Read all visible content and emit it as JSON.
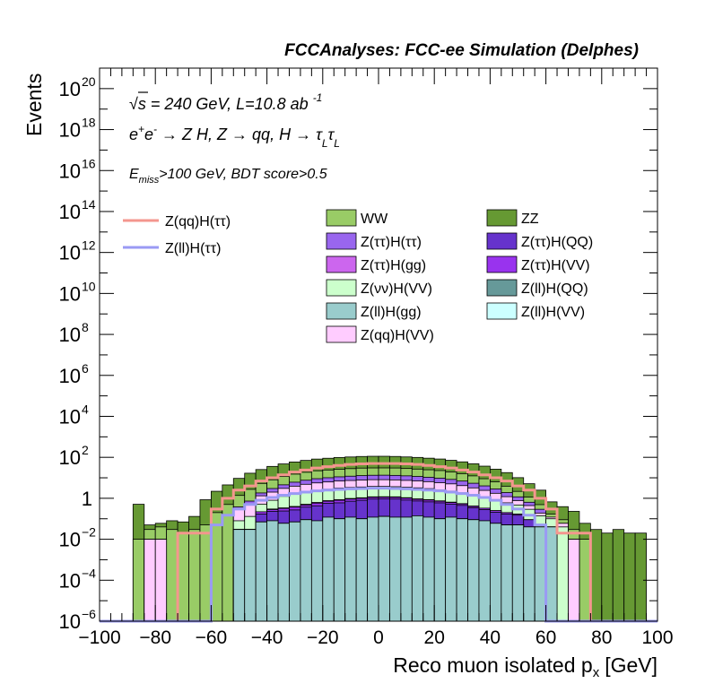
{
  "chart_data": {
    "type": "area",
    "title": "FCCAnalyses: FCC-ee Simulation (Delphes)",
    "xlabel": "Reco muon isolated p",
    "xlabel_sub": "x",
    "xlabel_unit": "[GeV]",
    "ylabel": "Events",
    "log_y": true,
    "xlim": [
      -100,
      100
    ],
    "ylim": [
      1e-06,
      1e+21
    ],
    "x_ticks": [
      "−100",
      "−80",
      "−60",
      "−40",
      "−20",
      "0",
      "20",
      "40",
      "60",
      "80",
      "100"
    ],
    "y_ticks": [
      {
        "base": "10",
        "exp": "−6"
      },
      {
        "base": "10",
        "exp": "−4"
      },
      {
        "base": "10",
        "exp": "−2"
      },
      {
        "base": "1",
        "exp": ""
      },
      {
        "base": "10",
        "exp": "2"
      },
      {
        "base": "10",
        "exp": "4"
      },
      {
        "base": "10",
        "exp": "6"
      },
      {
        "base": "10",
        "exp": "8"
      },
      {
        "base": "10",
        "exp": "10"
      },
      {
        "base": "10",
        "exp": "12"
      },
      {
        "base": "10",
        "exp": "14"
      },
      {
        "base": "10",
        "exp": "16"
      },
      {
        "base": "10",
        "exp": "18"
      },
      {
        "base": "10",
        "exp": "20"
      }
    ],
    "annotations": {
      "energy": "√s = 240 GeV, L=10.8 ab",
      "energy_sup": "-1",
      "process": "e⁺e⁻ → Z H, Z → qq, H → τ_L τ_L",
      "process_parts": [
        "e",
        "+",
        "e",
        "-",
        " → Z H, Z  → qq, H  → τ",
        "L",
        "τ",
        "L"
      ],
      "cut": "E_miss>100 GeV, BDT score>0.5",
      "cut_parts": [
        "E",
        "miss",
        ">100 GeV, BDT score>0.5"
      ]
    },
    "legend": {
      "signals": [
        {
          "name": "Z(qq)H(ττ)",
          "color": "#f4968e"
        },
        {
          "name": "Z(ll)H(ττ)",
          "color": "#9a9af4"
        }
      ],
      "backgrounds": [
        {
          "name": "WW",
          "color": "#99cc66"
        },
        {
          "name": "ZZ",
          "color": "#669933"
        },
        {
          "name": "Z(ττ)H(ττ)",
          "color": "#9966ee"
        },
        {
          "name": "Z(ττ)H(QQ)",
          "color": "#6633cc"
        },
        {
          "name": "Z(ττ)H(gg)",
          "color": "#cc66ee"
        },
        {
          "name": "Z(ττ)H(VV)",
          "color": "#9933ee"
        },
        {
          "name": "Z(νν)H(VV)",
          "color": "#ccffcc"
        },
        {
          "name": "Z(ll)H(QQ)",
          "color": "#669999"
        },
        {
          "name": "Z(ll)H(gg)",
          "color": "#99cccc"
        },
        {
          "name": "Z(ll)H(VV)",
          "color": "#ccffff"
        },
        {
          "name": "Z(qq)H(VV)",
          "color": "#ffccff"
        }
      ]
    },
    "bin_width": 4,
    "stack": [
      {
        "name": "Z(ll)H(gg)",
        "color": "#99cccc",
        "values": [
          0,
          0,
          0,
          0,
          0,
          0,
          0,
          0,
          0,
          0,
          0,
          0,
          0.03,
          0.03,
          0.07,
          0.08,
          0.06,
          0.07,
          0.09,
          0.08,
          0.12,
          0.1,
          0.12,
          0.1,
          0.12,
          0.13,
          0.12,
          0.12,
          0.14,
          0.12,
          0.1,
          0.12,
          0.1,
          0.09,
          0.08,
          0.06,
          0.05,
          0.05,
          0.04,
          0.04,
          0.04,
          0,
          0,
          0,
          0,
          0,
          0,
          0,
          0,
          0
        ]
      },
      {
        "name": "Z(ll)H(QQ)",
        "color": "#669999",
        "values": [
          0,
          0,
          0,
          0,
          0,
          0,
          0,
          0,
          0,
          0,
          0,
          0,
          0,
          0,
          0,
          0,
          0,
          0,
          0,
          0,
          0,
          0,
          0,
          0,
          0,
          0,
          0,
          0,
          0,
          0,
          0,
          0,
          0,
          0,
          0,
          0,
          0,
          0,
          0,
          0,
          0,
          0,
          0,
          0,
          0,
          0,
          0,
          0,
          0,
          0
        ]
      },
      {
        "name": "Z(ll)H(VV)",
        "color": "#ccffff",
        "values": [
          0,
          0,
          0,
          0,
          0,
          0,
          0,
          0,
          0,
          0,
          0,
          0,
          0,
          0,
          0,
          0,
          0,
          0,
          0,
          0,
          0,
          0,
          0,
          0,
          0,
          0,
          0,
          0,
          0,
          0,
          0,
          0,
          0,
          0,
          0,
          0,
          0,
          0,
          0,
          0,
          0,
          0,
          0,
          0,
          0,
          0,
          0,
          0,
          0,
          0
        ]
      },
      {
        "name": "Z(ττ)H(QQ)",
        "color": "#6633cc",
        "values": [
          0,
          0,
          0,
          0,
          0,
          0,
          0,
          0,
          0,
          0,
          0,
          0,
          0,
          0,
          0.1,
          0.15,
          0.18,
          0.2,
          0.28,
          0.35,
          0.45,
          0.5,
          0.6,
          0.7,
          0.8,
          0.8,
          0.8,
          0.7,
          0.6,
          0.55,
          0.5,
          0.4,
          0.35,
          0.25,
          0.2,
          0.15,
          0.12,
          0.1,
          0.05,
          0,
          0,
          0,
          0,
          0,
          0,
          0,
          0,
          0,
          0,
          0
        ]
      },
      {
        "name": "Z(ττ)H(VV)",
        "color": "#9933ee",
        "values": [
          0,
          0,
          0,
          0,
          0,
          0,
          0,
          0,
          0,
          0,
          0,
          0,
          0,
          0,
          0.05,
          0.05,
          0.08,
          0.1,
          0.1,
          0.15,
          0.15,
          0.2,
          0.2,
          0.2,
          0.2,
          0.2,
          0.2,
          0.2,
          0.15,
          0.15,
          0.12,
          0.1,
          0.08,
          0.06,
          0.05,
          0.04,
          0.03,
          0.02,
          0,
          0,
          0,
          0,
          0,
          0,
          0,
          0,
          0,
          0,
          0,
          0
        ]
      },
      {
        "name": "Z(ττ)H(gg)",
        "color": "#cc66ee",
        "values": [
          0,
          0,
          0,
          0,
          0,
          0,
          0,
          0,
          0,
          0,
          0,
          0,
          0,
          0,
          0,
          0.02,
          0.02,
          0.03,
          0.04,
          0.05,
          0.05,
          0.06,
          0.06,
          0.06,
          0.06,
          0.06,
          0.06,
          0.05,
          0.05,
          0.04,
          0.03,
          0.03,
          0.02,
          0.02,
          0,
          0,
          0,
          0,
          0,
          0,
          0,
          0,
          0,
          0,
          0,
          0,
          0,
          0,
          0,
          0
        ]
      },
      {
        "name": "Z(νν)H(VV)",
        "color": "#ccffcc",
        "values": [
          0,
          0,
          0,
          0,
          0,
          0,
          0,
          0,
          0,
          0,
          0,
          0,
          0.05,
          0.1,
          0.3,
          0.5,
          0.9,
          1.2,
          1.5,
          1.8,
          2.0,
          2.3,
          2.4,
          2.5,
          2.6,
          2.6,
          2.5,
          2.4,
          2.3,
          2.1,
          1.8,
          1.6,
          1.3,
          1.0,
          0.8,
          0.6,
          0.4,
          0.3,
          0.2,
          0.1,
          0.06,
          0.04,
          0,
          0,
          0,
          0,
          0,
          0,
          0,
          0
        ]
      },
      {
        "name": "Z(qq)H(VV)",
        "color": "#ffccff",
        "values": [
          0,
          0,
          0,
          0,
          0.01,
          0.01,
          0,
          0,
          0,
          0,
          0,
          0,
          0.2,
          0.4,
          0.8,
          1.2,
          1.8,
          2.3,
          2.8,
          3.2,
          3.5,
          3.8,
          4.0,
          4.2,
          4.3,
          4.3,
          4.2,
          4.0,
          3.8,
          3.5,
          3.2,
          2.8,
          2.3,
          1.8,
          1.3,
          0.9,
          0.6,
          0.3,
          0.15,
          0.05,
          0.02,
          0.02,
          0.01,
          0,
          0,
          0,
          0,
          0,
          0,
          0
        ]
      },
      {
        "name": "Z(ττ)H(ττ)",
        "color": "#9966ee",
        "values": [
          0,
          0,
          0,
          0,
          0,
          0,
          0,
          0,
          0,
          0,
          0,
          0,
          0.1,
          0.2,
          0.5,
          1.0,
          1.5,
          2.2,
          2.8,
          3.4,
          3.8,
          4.2,
          4.6,
          5.0,
          5.2,
          5.3,
          5.2,
          5.0,
          4.6,
          4.2,
          3.8,
          3.3,
          2.8,
          2.2,
          1.6,
          1.1,
          0.7,
          0.4,
          0.2,
          0.1,
          0,
          0,
          0,
          0,
          0,
          0,
          0,
          0,
          0,
          0
        ]
      },
      {
        "name": "WW",
        "color": "#99cc66",
        "values": [
          0,
          0,
          0,
          0.01,
          0.02,
          0.03,
          0.03,
          0.02,
          0.03,
          0.05,
          0.2,
          0.5,
          1.0,
          2.0,
          3.5,
          5.0,
          7.0,
          9.0,
          11,
          13,
          14,
          15,
          16,
          17,
          17,
          17,
          17,
          16,
          15,
          14,
          13,
          11,
          9,
          7,
          5,
          3.5,
          2.0,
          1.0,
          0.5,
          0.2,
          0.05,
          0.03,
          0.02,
          0.01,
          0,
          0,
          0,
          0,
          0,
          0
        ]
      },
      {
        "name": "ZZ",
        "color": "#669933",
        "values": [
          0,
          0,
          0,
          0.5,
          0.02,
          0.02,
          0.05,
          0.05,
          0.1,
          0.8,
          2,
          4,
          8,
          14,
          20,
          28,
          36,
          44,
          52,
          60,
          66,
          72,
          76,
          80,
          82,
          82,
          80,
          76,
          72,
          66,
          60,
          52,
          44,
          36,
          28,
          20,
          14,
          8,
          4,
          2,
          0.5,
          0.3,
          0.2,
          0.05,
          0.03,
          0.02,
          0.03,
          0.02,
          0.02,
          0
        ]
      }
    ],
    "signals": [
      {
        "name": "Z(qq)H(ττ)",
        "color": "#f4968e",
        "values": [
          0,
          0,
          0,
          0,
          0,
          0,
          0,
          0.02,
          0.02,
          0.02,
          0.3,
          1.0,
          2.5,
          4,
          7,
          10,
          14,
          19,
          24,
          30,
          35,
          40,
          45,
          48,
          50,
          50,
          50,
          48,
          45,
          40,
          35,
          30,
          24,
          19,
          14,
          10,
          7,
          4,
          2.5,
          1.0,
          0.3,
          0.02,
          0.02,
          0.02,
          0,
          0,
          0,
          0,
          0,
          0
        ]
      },
      {
        "name": "Z(ll)H(ττ)",
        "color": "#9a9af4",
        "values": [
          0,
          0,
          0,
          0,
          0,
          0,
          0,
          0,
          0,
          0,
          0.05,
          0.15,
          0.3,
          0.5,
          0.8,
          1.1,
          1.4,
          1.7,
          2.0,
          2.3,
          2.5,
          2.7,
          2.9,
          3.0,
          3.1,
          3.1,
          3.0,
          2.9,
          2.7,
          2.5,
          2.3,
          2.0,
          1.7,
          1.4,
          1.1,
          0.8,
          0.5,
          0.3,
          0.15,
          0.05,
          0,
          0,
          0,
          0,
          0,
          0,
          0,
          0,
          0,
          0
        ]
      }
    ]
  }
}
